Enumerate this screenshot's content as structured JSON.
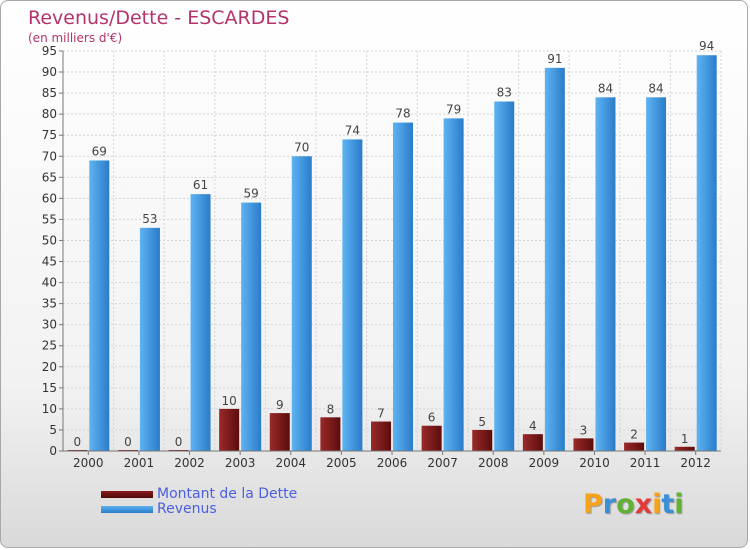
{
  "header": {
    "title": "Revenus/Dette - ESCARDES",
    "subtitle": "(en milliers d'€)"
  },
  "logo": {
    "text": "Proxiti",
    "colors": [
      "#f7a21b",
      "#3a8fd6",
      "#62b134",
      "#e23a3a",
      "#f7a21b",
      "#3a8fd6",
      "#62b134"
    ]
  },
  "chart_data": {
    "type": "bar",
    "categories": [
      "2000",
      "2001",
      "2002",
      "2003",
      "2004",
      "2005",
      "2006",
      "2007",
      "2008",
      "2009",
      "2010",
      "2011",
      "2012"
    ],
    "series": [
      {
        "name": "Montant de la Dette",
        "color": "#7a1414",
        "values": [
          0,
          0,
          0,
          10,
          9,
          8,
          7,
          6,
          5,
          4,
          3,
          2,
          1
        ]
      },
      {
        "name": "Revenus",
        "color": "#3d93de",
        "values": [
          69,
          53,
          61,
          59,
          70,
          74,
          78,
          79,
          83,
          91,
          84,
          84,
          94
        ]
      }
    ],
    "ylim": [
      0,
      95
    ],
    "ytick_step": 5,
    "grid": true,
    "legend": "bottom-left"
  }
}
